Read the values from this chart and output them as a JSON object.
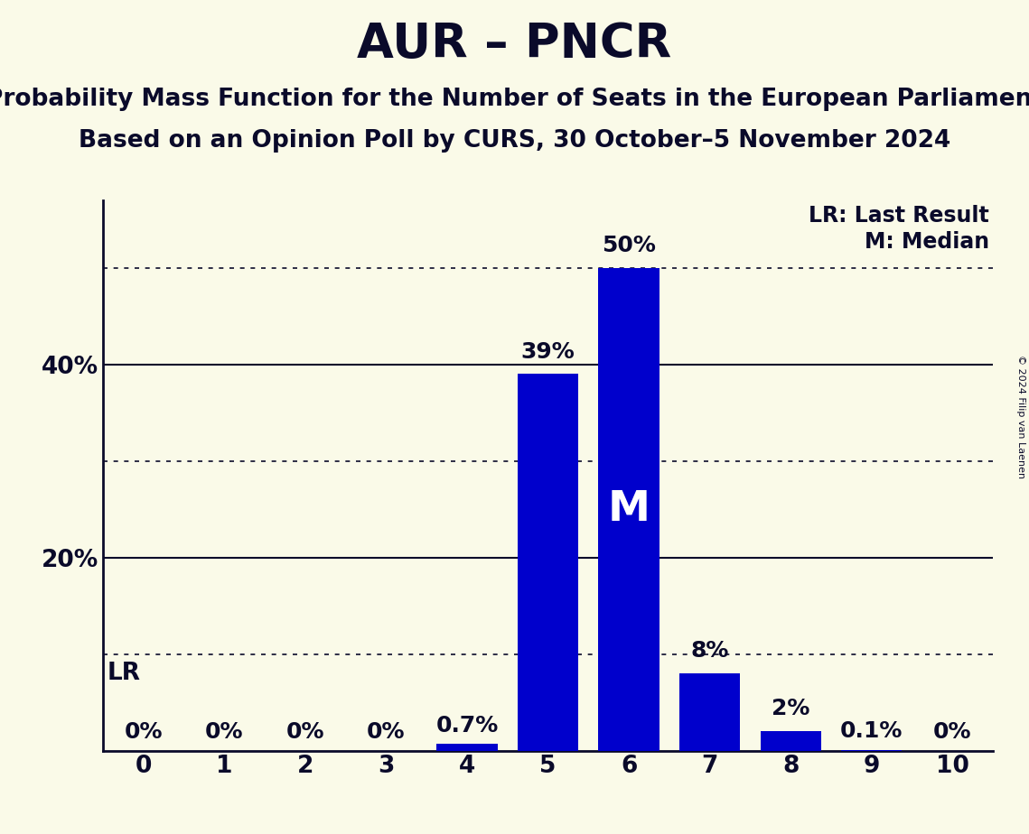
{
  "title": "AUR – PNCR",
  "subtitle1": "Probability Mass Function for the Number of Seats in the European Parliament",
  "subtitle2": "Based on an Opinion Poll by CURS, 30 October–5 November 2024",
  "copyright": "© 2024 Filip van Laenen",
  "seats": [
    0,
    1,
    2,
    3,
    4,
    5,
    6,
    7,
    8,
    9,
    10
  ],
  "probabilities": [
    0.0,
    0.0,
    0.0,
    0.0,
    0.7,
    39.0,
    50.0,
    8.0,
    2.0,
    0.1,
    0.0
  ],
  "bar_color": "#0000cc",
  "background_color": "#fafae8",
  "median_seat": 6,
  "lr_seat": 0,
  "bar_labels": [
    "0%",
    "0%",
    "0%",
    "0%",
    "0.7%",
    "39%",
    "50%",
    "8%",
    "2%",
    "0.1%",
    "0%"
  ],
  "dotted_yvals": [
    10,
    30,
    50
  ],
  "solid_yvals": [
    20,
    40
  ],
  "ylim": [
    0,
    57
  ],
  "legend_lr": "LR: Last Result",
  "legend_m": "M: Median",
  "lr_label": "LR",
  "title_fontsize": 38,
  "subtitle_fontsize": 19,
  "tick_fontsize": 19,
  "bar_label_fontsize": 18,
  "legend_fontsize": 17,
  "median_fontsize": 34,
  "lr_label_fontsize": 19,
  "axis_color": "#0a0a2a",
  "text_color": "#0a0a2a",
  "copyright_fontsize": 8
}
